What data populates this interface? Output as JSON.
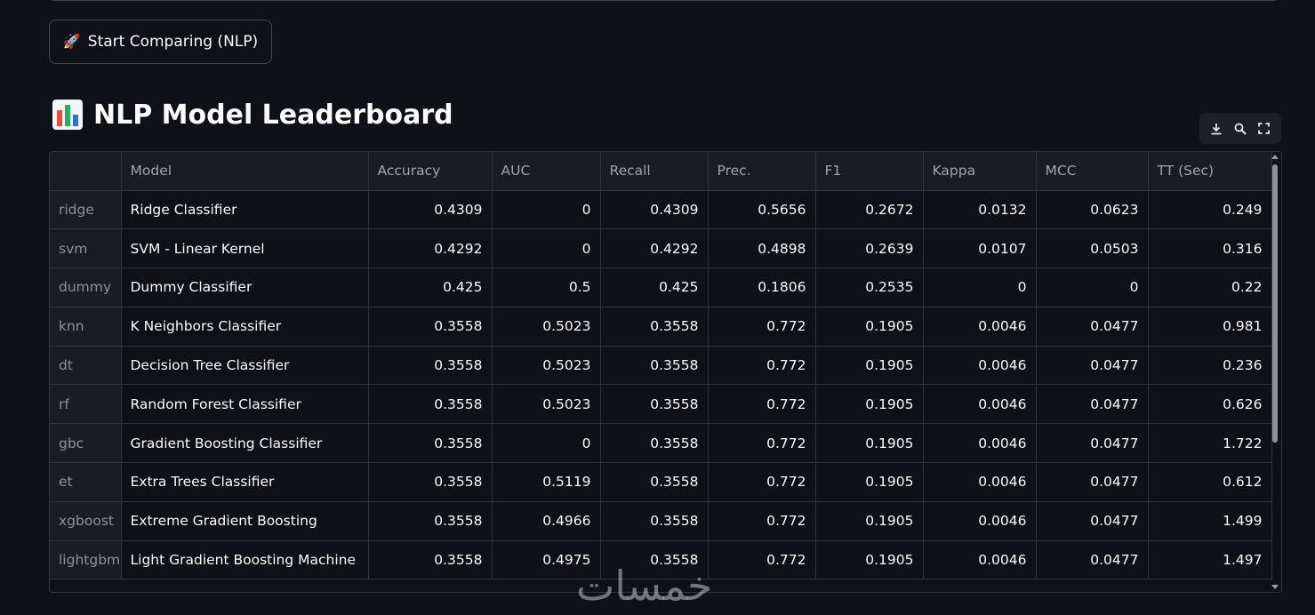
{
  "run_button": {
    "icon": "rocket-icon",
    "label": "Start Comparing (NLP)"
  },
  "heading": {
    "icon": "bar-chart-icon",
    "title": "NLP Model Leaderboard"
  },
  "toolbar": {
    "items": [
      "download-icon",
      "search-icon",
      "fullscreen-icon"
    ]
  },
  "table": {
    "columns": [
      "",
      "Model",
      "Accuracy",
      "AUC",
      "Recall",
      "Prec.",
      "F1",
      "Kappa",
      "MCC",
      "TT (Sec)"
    ],
    "rows": [
      [
        "ridge",
        "Ridge Classifier",
        "0.4309",
        "0",
        "0.4309",
        "0.5656",
        "0.2672",
        "0.0132",
        "0.0623",
        "0.249"
      ],
      [
        "svm",
        "SVM - Linear Kernel",
        "0.4292",
        "0",
        "0.4292",
        "0.4898",
        "0.2639",
        "0.0107",
        "0.0503",
        "0.316"
      ],
      [
        "dummy",
        "Dummy Classifier",
        "0.425",
        "0.5",
        "0.425",
        "0.1806",
        "0.2535",
        "0",
        "0",
        "0.22"
      ],
      [
        "knn",
        "K Neighbors Classifier",
        "0.3558",
        "0.5023",
        "0.3558",
        "0.772",
        "0.1905",
        "0.0046",
        "0.0477",
        "0.981"
      ],
      [
        "dt",
        "Decision Tree Classifier",
        "0.3558",
        "0.5023",
        "0.3558",
        "0.772",
        "0.1905",
        "0.0046",
        "0.0477",
        "0.236"
      ],
      [
        "rf",
        "Random Forest Classifier",
        "0.3558",
        "0.5023",
        "0.3558",
        "0.772",
        "0.1905",
        "0.0046",
        "0.0477",
        "0.626"
      ],
      [
        "gbc",
        "Gradient Boosting Classifier",
        "0.3558",
        "0",
        "0.3558",
        "0.772",
        "0.1905",
        "0.0046",
        "0.0477",
        "1.722"
      ],
      [
        "et",
        "Extra Trees Classifier",
        "0.3558",
        "0.5119",
        "0.3558",
        "0.772",
        "0.1905",
        "0.0046",
        "0.0477",
        "0.612"
      ],
      [
        "xgboost",
        "Extreme Gradient Boosting",
        "0.3558",
        "0.4966",
        "0.3558",
        "0.772",
        "0.1905",
        "0.0046",
        "0.0477",
        "1.499"
      ],
      [
        "lightgbm",
        "Light Gradient Boosting Machine",
        "0.3558",
        "0.4975",
        "0.3558",
        "0.772",
        "0.1905",
        "0.0046",
        "0.0477",
        "1.497"
      ]
    ]
  },
  "watermark": "خمسات",
  "colors": {
    "background": "#0e1117",
    "text": "#fafafa",
    "header_bg": "#1a1c23",
    "muted_text": "#9fa3ad",
    "border": "#31343c"
  }
}
